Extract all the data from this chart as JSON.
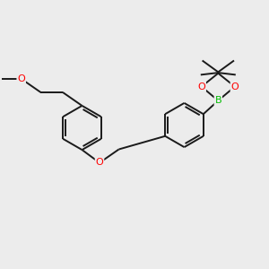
{
  "background_color": "#ececec",
  "bond_color": "#1a1a1a",
  "oxygen_color": "#ff0000",
  "boron_color": "#00bb00",
  "bond_width": 1.4,
  "figsize": [
    3.0,
    3.0
  ],
  "dpi": 100,
  "xlim": [
    0,
    10
  ],
  "ylim": [
    0,
    10
  ]
}
